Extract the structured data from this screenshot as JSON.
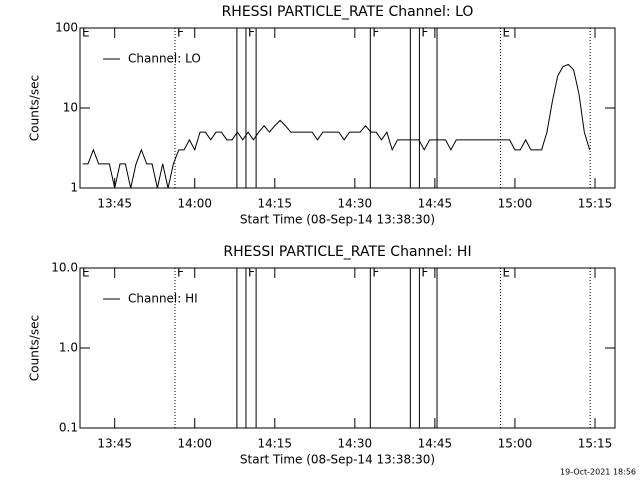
{
  "chart_data": [
    {
      "type": "line",
      "title": "RHESSI PARTICLE_RATE Channel: LO",
      "y_label": "Counts/sec",
      "x_label": "Start Time (08-Sep-14 13:38:30)",
      "log_y": true,
      "ylim": [
        1,
        100
      ],
      "yticks": [
        1,
        10,
        100
      ],
      "xlim": [
        818.5,
        918.75
      ],
      "xticks": [
        {
          "value": 825,
          "label": "13:45"
        },
        {
          "value": 840,
          "label": "14:00"
        },
        {
          "value": 855,
          "label": "14:15"
        },
        {
          "value": 870,
          "label": "14:30"
        },
        {
          "value": 885,
          "label": "14:45"
        },
        {
          "value": 900,
          "label": "15:00"
        },
        {
          "value": 915,
          "label": "15:15"
        }
      ],
      "x": [
        819,
        820,
        821,
        822,
        823,
        824,
        825,
        826,
        827,
        828,
        829,
        830,
        831,
        832,
        833,
        834,
        835,
        836,
        837,
        838,
        839,
        840,
        841,
        842,
        843,
        844,
        845,
        846,
        847,
        848,
        849,
        850,
        851,
        852,
        853,
        854,
        855,
        856,
        857,
        858,
        859,
        860,
        861,
        862,
        863,
        864,
        865,
        866,
        867,
        868,
        869,
        870,
        871,
        872,
        873,
        874,
        875,
        876,
        877,
        878,
        879,
        880,
        881,
        882,
        883,
        884,
        885,
        886,
        887,
        888,
        889,
        890,
        891,
        892,
        893,
        894,
        895,
        896,
        897,
        898,
        899,
        900,
        901,
        902,
        903,
        904,
        905,
        906,
        907,
        908,
        909,
        910,
        911,
        912,
        913,
        914
      ],
      "series": [
        {
          "name": "Channel: LO",
          "color": "#000000",
          "values": [
            2,
            2,
            3,
            2,
            2,
            2,
            1,
            2,
            2,
            1,
            2,
            3,
            2,
            2,
            1,
            2,
            1,
            2,
            3,
            3,
            4,
            3,
            5,
            5,
            4,
            5,
            5,
            4,
            4,
            5,
            4,
            5,
            4,
            5,
            6,
            5,
            6,
            7,
            6,
            5,
            5,
            5,
            5,
            5,
            4,
            5,
            5,
            5,
            5,
            4,
            5,
            5,
            5,
            6,
            5,
            5,
            4,
            5,
            3,
            4,
            4,
            4,
            4,
            4,
            3,
            4,
            4,
            4,
            4,
            3,
            4,
            4,
            4,
            4,
            4,
            4,
            4,
            4,
            4,
            4,
            4,
            3,
            3,
            4,
            3,
            3,
            3,
            5,
            12,
            25,
            33,
            35,
            30,
            15,
            5,
            3
          ]
        }
      ],
      "vlines": [
        {
          "x": 836.3,
          "style": "dotted"
        },
        {
          "x": 847.9,
          "style": "solid"
        },
        {
          "x": 849.6,
          "style": "solid"
        },
        {
          "x": 851.5,
          "style": "solid"
        },
        {
          "x": 872.9,
          "style": "solid"
        },
        {
          "x": 880.4,
          "style": "solid"
        },
        {
          "x": 882.1,
          "style": "solid"
        },
        {
          "x": 885.4,
          "style": "solid"
        },
        {
          "x": 897.3,
          "style": "dotted"
        },
        {
          "x": 914.1,
          "style": "dotted"
        }
      ],
      "flags": [
        {
          "x": 818.5,
          "label": "E"
        },
        {
          "x": 836.3,
          "label": "F"
        },
        {
          "x": 849.6,
          "label": "F"
        },
        {
          "x": 872.9,
          "label": "F"
        },
        {
          "x": 882.1,
          "label": "F"
        },
        {
          "x": 897.3,
          "label": "E"
        }
      ]
    },
    {
      "type": "line",
      "title": "RHESSI PARTICLE_RATE Channel: HI",
      "y_label": "Counts/sec",
      "x_label": "Start Time (08-Sep-14 13:38:30)",
      "log_y": true,
      "ylim": [
        0.1,
        10
      ],
      "yticks": [
        0.1,
        {
          "value": 1,
          "label": "1.0"
        },
        {
          "value": 10,
          "label": "10.0"
        }
      ],
      "xlim": [
        818.5,
        918.75
      ],
      "xticks": [
        {
          "value": 825,
          "label": "13:45"
        },
        {
          "value": 840,
          "label": "14:00"
        },
        {
          "value": 855,
          "label": "14:15"
        },
        {
          "value": 870,
          "label": "14:30"
        },
        {
          "value": 885,
          "label": "14:45"
        },
        {
          "value": 900,
          "label": "15:00"
        },
        {
          "value": 915,
          "label": "15:15"
        }
      ],
      "x": [],
      "series": [
        {
          "name": "Channel: HI",
          "color": "#000000",
          "values": []
        }
      ],
      "vlines": [
        {
          "x": 836.3,
          "style": "dotted"
        },
        {
          "x": 847.9,
          "style": "solid"
        },
        {
          "x": 849.6,
          "style": "solid"
        },
        {
          "x": 851.5,
          "style": "solid"
        },
        {
          "x": 872.9,
          "style": "solid"
        },
        {
          "x": 880.4,
          "style": "solid"
        },
        {
          "x": 882.1,
          "style": "solid"
        },
        {
          "x": 885.4,
          "style": "solid"
        },
        {
          "x": 897.3,
          "style": "dotted"
        },
        {
          "x": 914.1,
          "style": "dotted"
        }
      ],
      "flags": [
        {
          "x": 818.5,
          "label": "E"
        },
        {
          "x": 836.3,
          "label": "F"
        },
        {
          "x": 849.6,
          "label": "F"
        },
        {
          "x": 872.9,
          "label": "F"
        },
        {
          "x": 882.1,
          "label": "F"
        },
        {
          "x": 897.3,
          "label": "E"
        }
      ]
    }
  ],
  "footer": "19-Oct-2021 18:56"
}
